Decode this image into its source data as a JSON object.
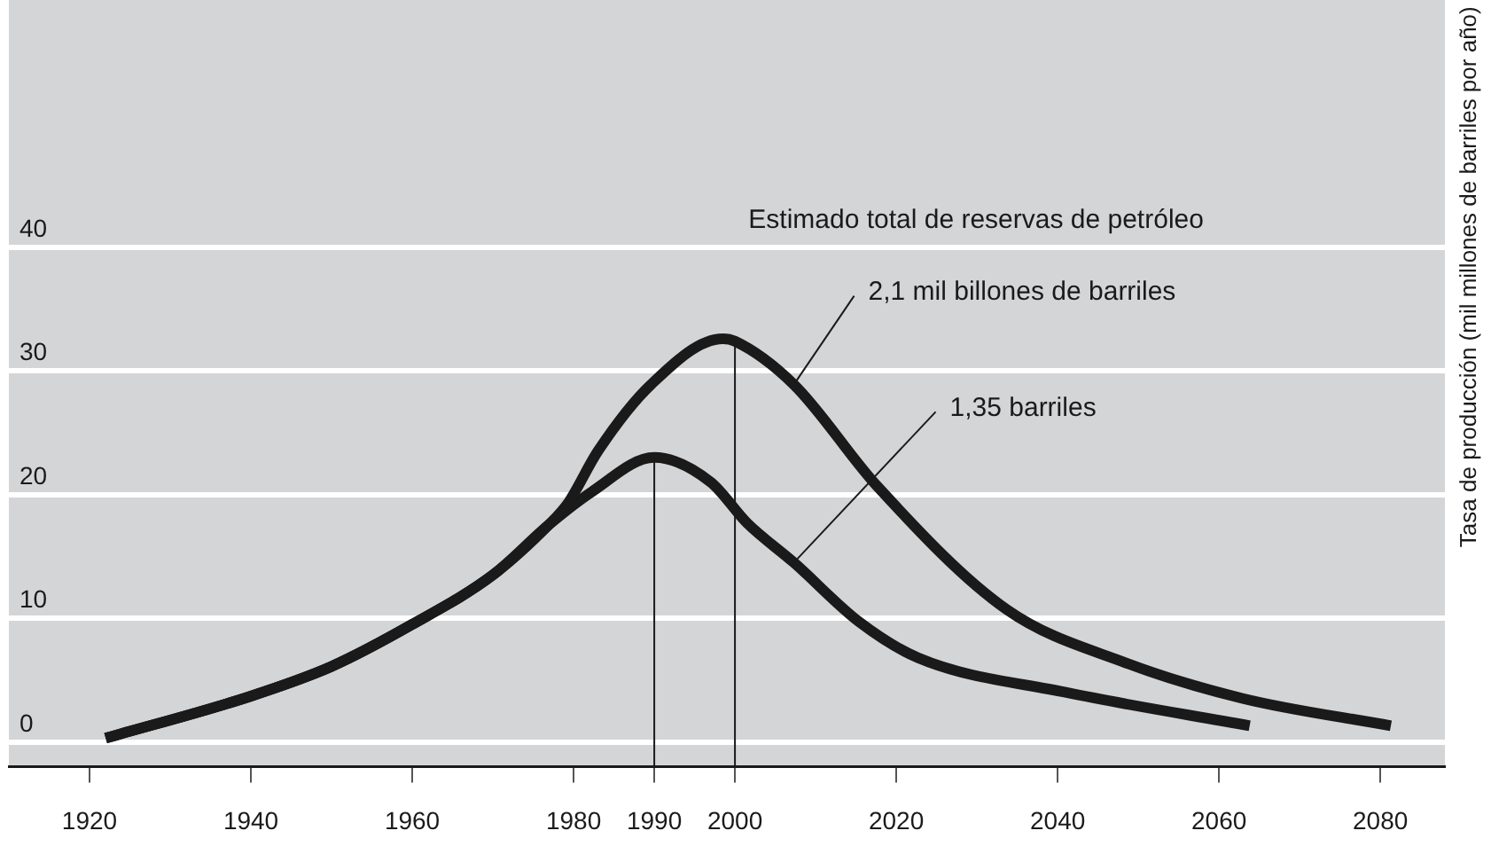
{
  "chart_data": {
    "type": "line",
    "ylabel": "Tasa de producción (mil millones de barriles por año)",
    "xlim": [
      1910,
      2088
    ],
    "xticks": [
      1920,
      1940,
      1960,
      1980,
      1990,
      2000,
      2020,
      2040,
      2060,
      2080
    ],
    "ylim": [
      -2,
      60
    ],
    "yticks": [
      0,
      10,
      20,
      30,
      40
    ],
    "grid": "y",
    "legend": false,
    "marker": "none",
    "line_style": "solid",
    "series": [
      {
        "color": "#1a1a1a",
        "x": [
          1922,
          1940,
          1950,
          1960,
          1970,
          1977,
          1979.3,
          1983,
          1989.6,
          1998.5,
          2000,
          2007.3,
          2017.6,
          2033.7,
          2048.4,
          2063,
          2081.3
        ],
        "values": [
          0.3,
          3.7,
          6.1,
          9.5,
          13.5,
          17.6,
          19.3,
          23.5,
          28.9,
          32.6,
          32.4,
          28.9,
          20.7,
          10.7,
          6.4,
          3.5,
          1.3
        ]
      },
      {
        "color": "#1a1a1a",
        "x": [
          1922,
          1940,
          1950,
          1960,
          1970,
          1977,
          1982.2,
          1990,
          1997,
          2001.5,
          2007.3,
          2015.4,
          2022.7,
          2041,
          2063.8
        ],
        "values": [
          0.3,
          3.7,
          6.1,
          9.5,
          13.5,
          17.6,
          20.2,
          23,
          21,
          17.7,
          14.5,
          9.7,
          6.8,
          4,
          1.3
        ]
      },
      {
        "color": "#1a1a1a",
        "x": [
          1990,
          1990
        ],
        "values": [
          -2,
          23
        ]
      },
      {
        "color": "#1a1a1a",
        "x": [
          2000,
          2000
        ],
        "values": [
          -2,
          32.4
        ]
      }
    ],
    "annotations": [
      "Estimado total de reservas de petróleo",
      {
        "text": "2,1 mil billones de barriles",
        "x": 2007.3,
        "y": 28.9
      },
      {
        "text": "1,35 barriles",
        "x": 2007.3,
        "y": 14.5
      }
    ]
  }
}
